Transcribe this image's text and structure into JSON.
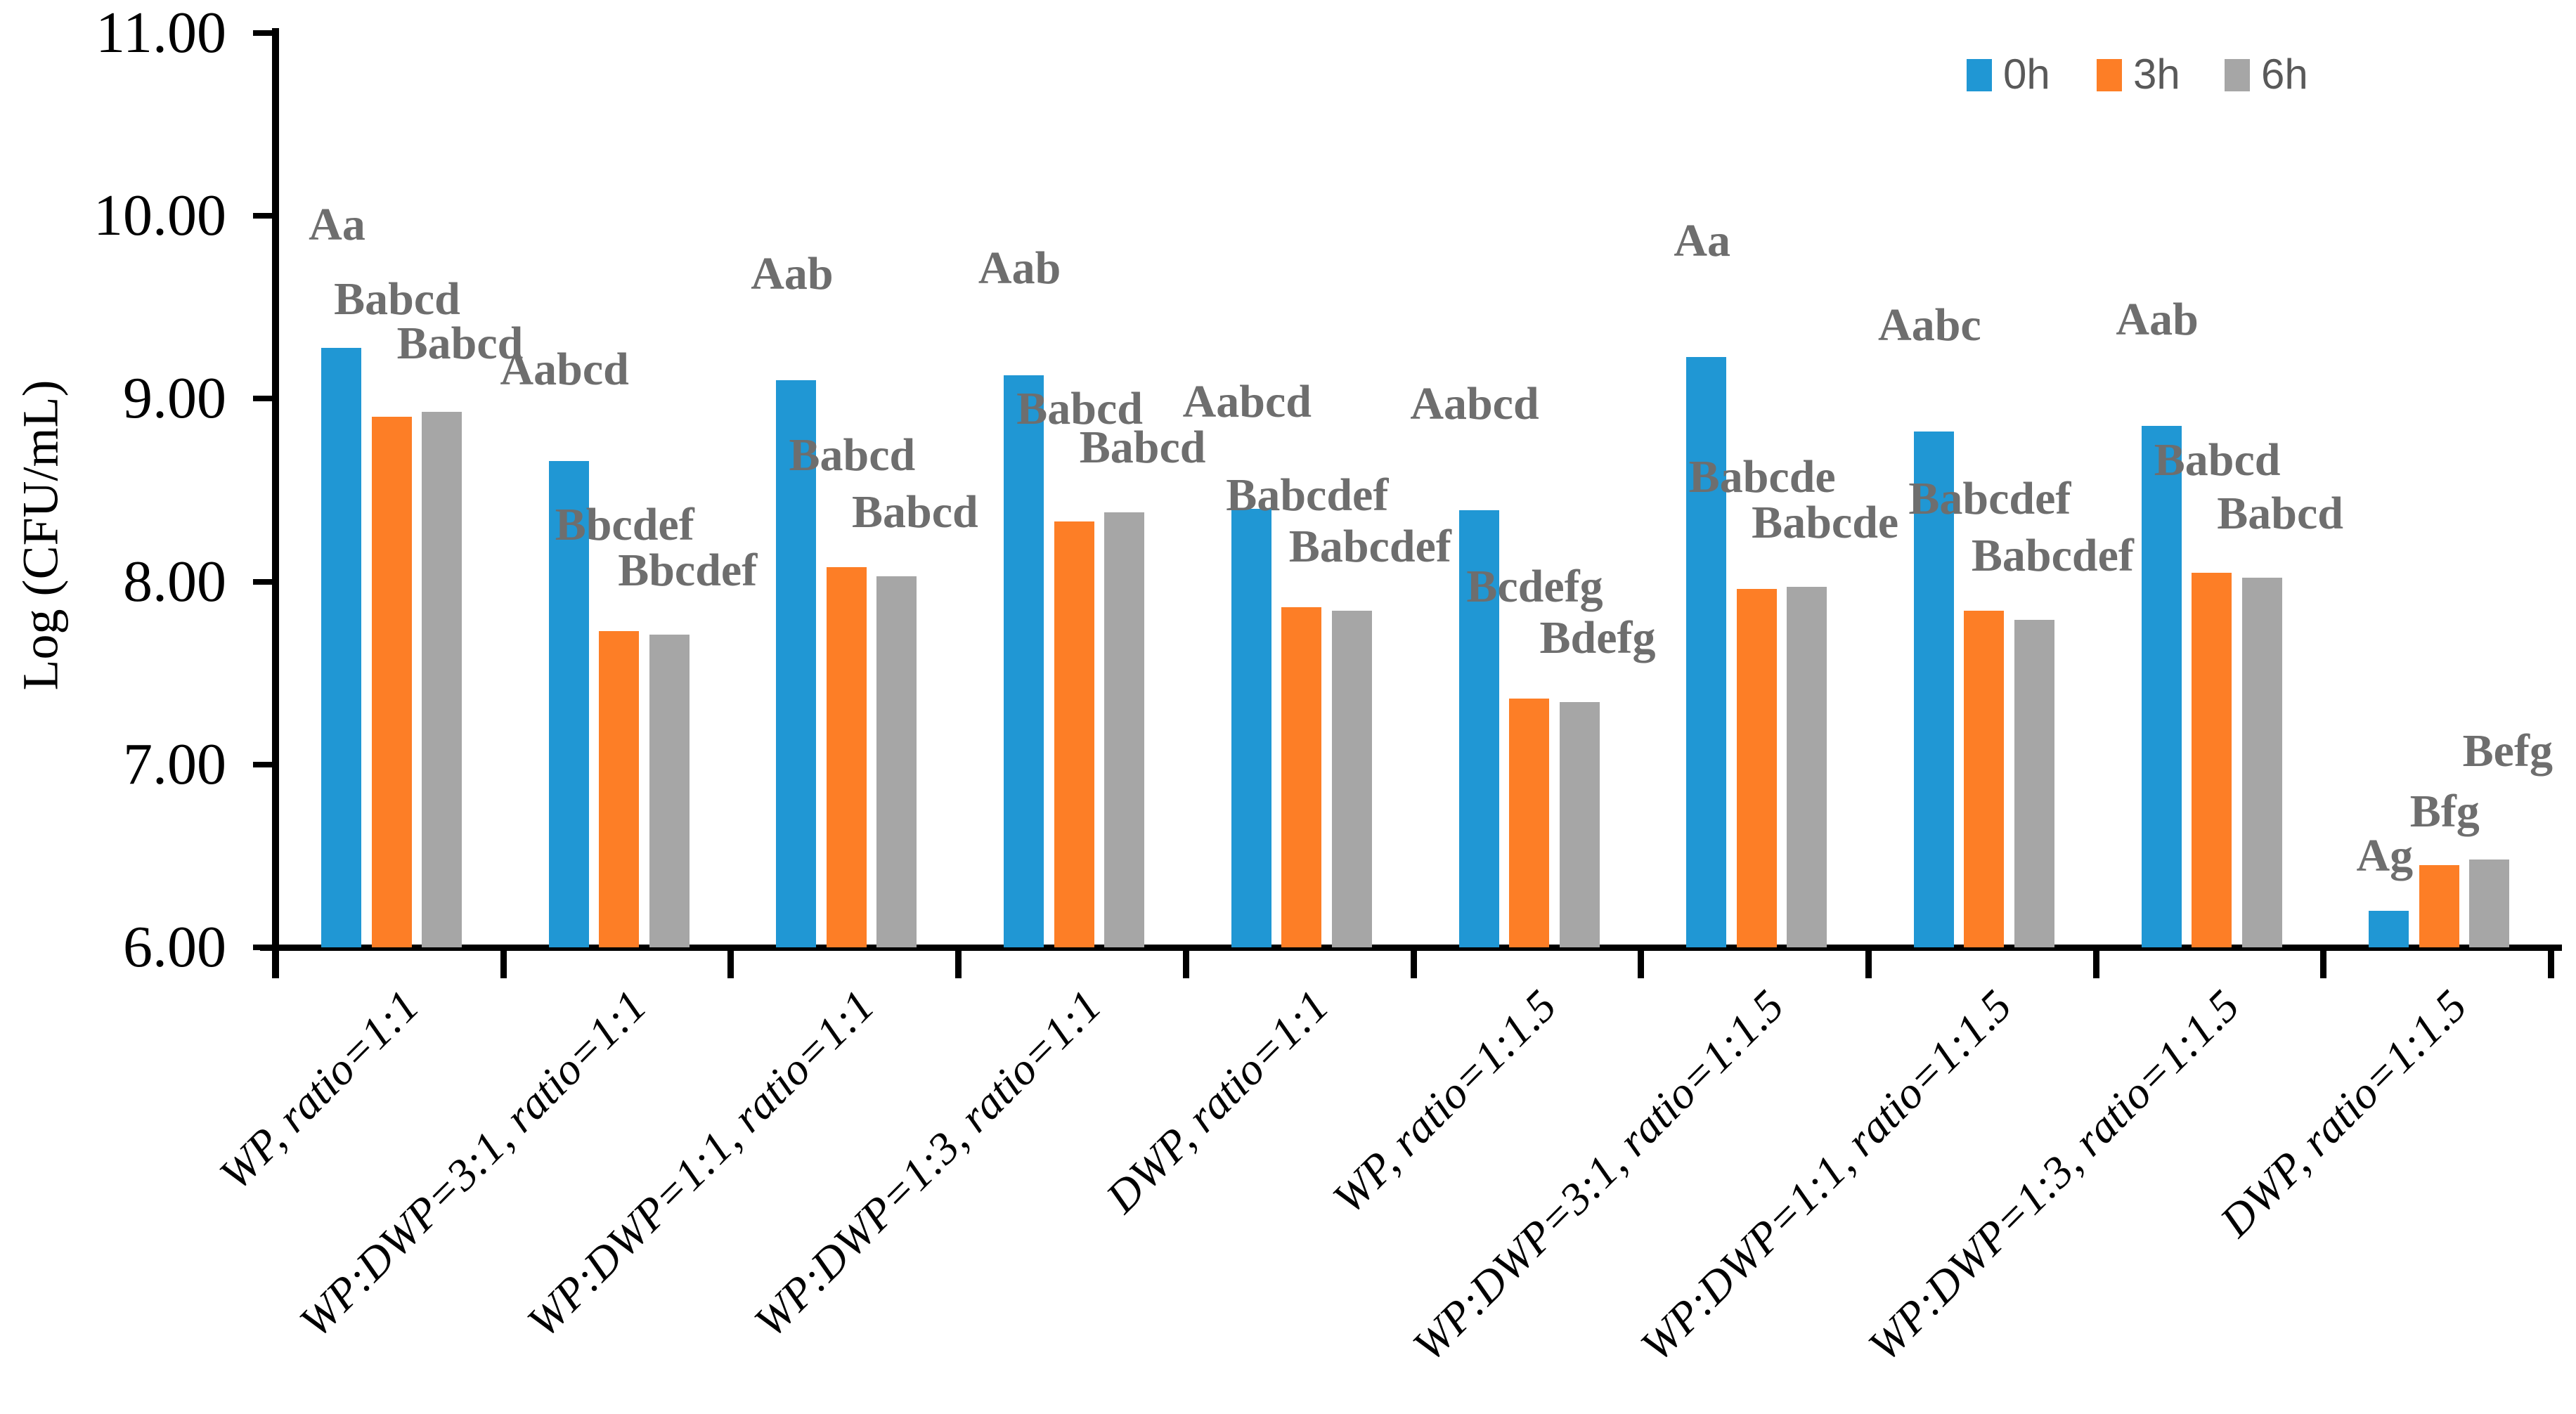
{
  "chart_data": {
    "type": "bar",
    "title": "",
    "xlabel": "",
    "ylabel": "Log (CFU/mL)",
    "ylim": [
      6,
      11
    ],
    "ytick_labels": [
      "11.00",
      "10.00",
      "9.00",
      "8.00",
      "7.00",
      "6.00"
    ],
    "ytick_values": [
      11,
      10,
      9,
      8,
      7,
      6
    ],
    "grid": false,
    "legend_position": "top-right",
    "annotation_color": "#6e6e6e",
    "axis_color": "#000000",
    "categories": [
      "WP, ratio=1:1",
      "WP:DWP=3:1, ratio=1:1",
      "WP:DWP=1:1, ratio=1:1",
      "WP:DWP=1:3, ratio=1:1",
      "DWP, ratio=1:1",
      "WP, ratio=1:1.5",
      "WP:DWP=3:1, ratio=1:1.5",
      "WP:DWP=1:1, ratio=1:1.5",
      "WP:DWP=1:3, ratio=1:1.5",
      "DWP, ratio=1:1.5"
    ],
    "series": [
      {
        "name": "0h",
        "color": "#2097d4",
        "values": [
          9.28,
          8.66,
          9.1,
          9.13,
          8.4,
          8.39,
          9.23,
          8.82,
          8.85,
          6.2
        ],
        "annotations": [
          "Aa",
          "Aabcd",
          "Aab",
          "Aab",
          "Aabcd",
          "Aabcd",
          "Aa",
          "Aabc",
          "Aab",
          "Ag"
        ]
      },
      {
        "name": "3h",
        "color": "#fd7e26",
        "values": [
          8.9,
          7.73,
          8.08,
          8.33,
          7.86,
          7.36,
          7.96,
          7.84,
          8.05,
          6.45
        ],
        "annotations": [
          "Babcd",
          "Bbcdef",
          "Babcd",
          "Babcd",
          "Babcdef",
          "Bcdefg",
          "Babcde",
          "Babcdef",
          "Babcd",
          "Bfg"
        ]
      },
      {
        "name": "6h",
        "color": "#a6a6a6",
        "values": [
          8.93,
          7.71,
          8.03,
          8.38,
          7.84,
          7.34,
          7.97,
          7.79,
          8.02,
          6.48
        ],
        "annotations": [
          "Babcd",
          "Bbcdef",
          "Babcd",
          "Babcd",
          "Babcdef",
          "Bdefg",
          "Babcde",
          "Babcdef",
          "Babcd",
          "Befg"
        ]
      }
    ]
  }
}
